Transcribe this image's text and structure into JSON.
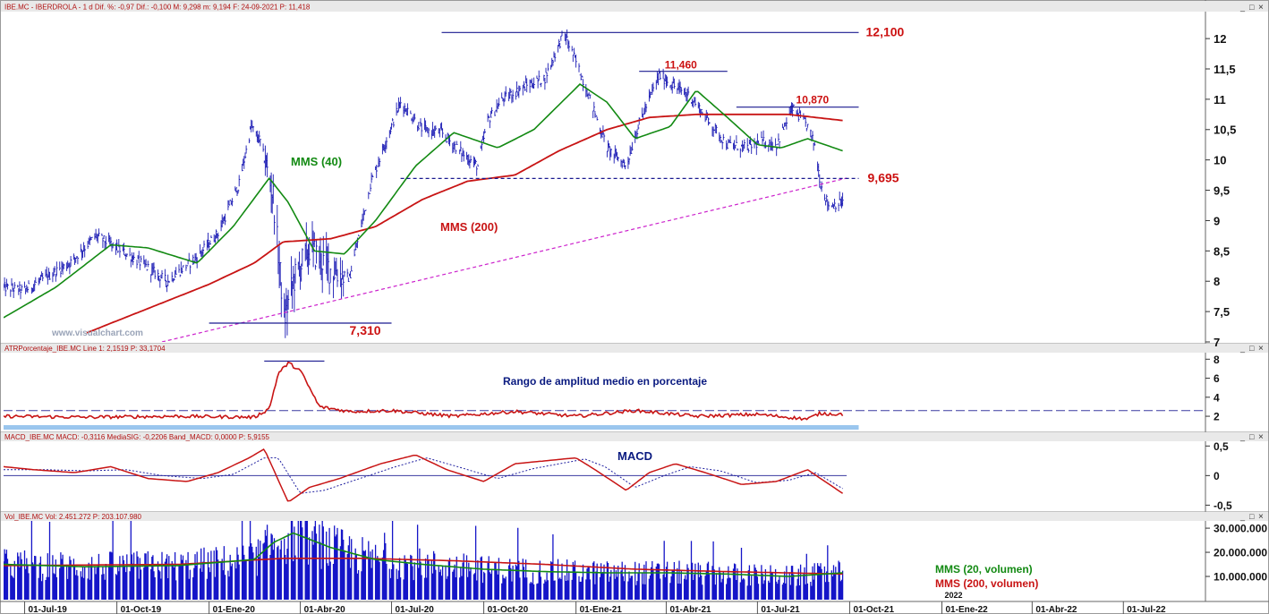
{
  "colors": {
    "price": "#1a1ab4",
    "mma40": "#138a13",
    "mma200": "#c81414",
    "trend": "#cc22cc",
    "annot_red": "#cc1111",
    "annot_blue": "#0a1a80",
    "level_line": "#1a1a90",
    "volume": "#1515c8",
    "grid_bg": "#ffffff",
    "header_bg": "#e9e9e9",
    "watermark": "#9aa4b8",
    "atr_band": "#9ac6ee"
  },
  "chart_data": [
    {
      "type": "line",
      "panel": "price",
      "header": "IBE.MC - IBERDROLA - 1 d Dif. %: -0,97 Dif.: -0,100 M: 9,298 m: 9,194 F: 24-09-2021 P: 11,418",
      "yticks": [
        "12",
        "11,5",
        "11",
        "10,5",
        "10",
        "9,5",
        "9",
        "8,5",
        "8",
        "7,5",
        "7"
      ],
      "ylim": [
        7,
        12.4
      ],
      "x_date_range": [
        "2019-06-10",
        "2022-09-20"
      ],
      "watermark": "www.visualchart.com",
      "series": [
        {
          "name": "",
          "role": "price",
          "dates": [
            "2019-06-10",
            "2019-07-01",
            "2019-08-15",
            "2019-09-10",
            "2019-10-01",
            "2019-10-25",
            "2019-11-20",
            "2019-12-20",
            "2020-01-10",
            "2020-01-31",
            "2020-02-12",
            "2020-02-21",
            "2020-03-05",
            "2020-03-16",
            "2020-03-25",
            "2020-04-10",
            "2020-05-01",
            "2020-05-20",
            "2020-06-10",
            "2020-06-25",
            "2020-07-10",
            "2020-08-01",
            "2020-08-20",
            "2020-09-10",
            "2020-09-25",
            "2020-10-05",
            "2020-10-20",
            "2020-11-10",
            "2020-12-01",
            "2020-12-20",
            "2021-01-05",
            "2021-01-15",
            "2021-02-01",
            "2021-02-20",
            "2021-03-05",
            "2021-03-25",
            "2021-04-10",
            "2021-04-25",
            "2021-05-15",
            "2021-06-01",
            "2021-06-20",
            "2021-07-05",
            "2021-07-20",
            "2021-08-05",
            "2021-08-20",
            "2021-08-27",
            "2021-09-02",
            "2021-09-10",
            "2021-09-24"
          ],
          "values": [
            7.9,
            7.85,
            8.3,
            8.75,
            8.55,
            8.3,
            8.0,
            8.4,
            8.8,
            9.6,
            10.55,
            10.3,
            9.4,
            7.35,
            8.0,
            8.55,
            8.2,
            8.05,
            9.6,
            10.3,
            10.95,
            10.5,
            10.45,
            10.1,
            9.9,
            10.65,
            11.0,
            11.2,
            11.35,
            12.1,
            11.45,
            11.0,
            10.2,
            9.9,
            10.6,
            11.4,
            11.2,
            11.05,
            10.6,
            10.25,
            10.2,
            10.3,
            10.25,
            10.85,
            10.55,
            10.25,
            9.6,
            9.25,
            9.3
          ]
        },
        {
          "name": "MMS (40)",
          "role": "mma40",
          "dates": [
            "2019-06-10",
            "2019-08-01",
            "2019-09-25",
            "2019-11-01",
            "2019-12-20",
            "2020-01-25",
            "2020-03-01",
            "2020-03-20",
            "2020-04-15",
            "2020-05-15",
            "2020-06-15",
            "2020-07-25",
            "2020-09-01",
            "2020-10-15",
            "2020-11-20",
            "2021-01-05",
            "2021-02-01",
            "2021-03-01",
            "2021-04-05",
            "2021-05-01",
            "2021-06-01",
            "2021-07-01",
            "2021-07-25",
            "2021-08-20",
            "2021-09-24"
          ],
          "values": [
            7.4,
            7.9,
            8.6,
            8.55,
            8.3,
            8.9,
            9.7,
            9.3,
            8.5,
            8.45,
            9.0,
            9.9,
            10.45,
            10.2,
            10.5,
            11.25,
            10.95,
            10.35,
            10.55,
            11.15,
            10.7,
            10.25,
            10.2,
            10.35,
            10.15
          ]
        },
        {
          "name": "MMS (200)",
          "role": "mma200",
          "dates": [
            "2019-09-01",
            "2019-11-01",
            "2020-01-01",
            "2020-02-15",
            "2020-03-15",
            "2020-05-01",
            "2020-06-15",
            "2020-08-01",
            "2020-09-15",
            "2020-11-01",
            "2020-12-15",
            "2021-02-01",
            "2021-03-15",
            "2021-05-01",
            "2021-06-15",
            "2021-08-01",
            "2021-09-24"
          ],
          "values": [
            7.15,
            7.55,
            7.95,
            8.3,
            8.65,
            8.7,
            8.9,
            9.35,
            9.65,
            9.75,
            10.15,
            10.5,
            10.7,
            10.75,
            10.75,
            10.75,
            10.65
          ]
        }
      ],
      "trendline": {
        "dates": [
          "2019-11-15",
          "2021-09-28"
        ],
        "values": [
          7.0,
          9.7
        ]
      },
      "levels": [
        {
          "label": "12,100",
          "value": 12.1,
          "from": "2020-08-20",
          "to": "2021-10-10",
          "style": "solid"
        },
        {
          "label": "11,460",
          "value": 11.46,
          "from": "2021-03-05",
          "to": "2021-06-01",
          "style": "solid"
        },
        {
          "label": "10,870",
          "value": 10.87,
          "from": "2021-06-10",
          "to": "2021-10-10",
          "style": "solid"
        },
        {
          "label": "9,695",
          "value": 9.695,
          "from": "2020-07-10",
          "to": "2021-10-10",
          "style": "dashed"
        },
        {
          "label": "7,310",
          "value": 7.31,
          "from": "2020-01-01",
          "to": "2020-07-01",
          "style": "solid"
        }
      ]
    },
    {
      "type": "line",
      "panel": "atr",
      "header": "ATRPorcentaje_IBE.MC Line 1: 2,1519 P: 33,1704",
      "title": "Rango de amplitud medio en porcentaje",
      "yticks": [
        "8",
        "6",
        "4",
        "2"
      ],
      "ylim": [
        0.5,
        8.5
      ],
      "dates": [
        "2019-06-10",
        "2019-09-01",
        "2019-12-01",
        "2020-02-15",
        "2020-03-01",
        "2020-03-10",
        "2020-03-20",
        "2020-04-01",
        "2020-04-20",
        "2020-05-20",
        "2020-07-01",
        "2020-09-01",
        "2020-11-01",
        "2021-01-01",
        "2021-03-01",
        "2021-05-01",
        "2021-07-01",
        "2021-08-20",
        "2021-09-01",
        "2021-09-24"
      ],
      "values": [
        2.0,
        1.9,
        2.0,
        1.9,
        2.8,
        6.5,
        7.6,
        6.8,
        3.0,
        2.5,
        2.6,
        2.0,
        2.5,
        2.0,
        2.6,
        2.0,
        2.2,
        1.7,
        2.3,
        2.2
      ],
      "reference_line": 2.6,
      "peak_line": {
        "value": 7.8,
        "from": "2020-02-25",
        "to": "2020-04-25"
      }
    },
    {
      "type": "line",
      "panel": "macd",
      "header": "MACD_IBE.MC MACD: -0,3116 MediaSIG: -0,2206 Band_MACD: 0,0000 P: 5,9155",
      "title": "MACD",
      "yticks": [
        "0,5",
        "0",
        "-0,5"
      ],
      "ylim": [
        -0.6,
        0.55
      ],
      "series": [
        {
          "name": "",
          "role": "macd",
          "dates": [
            "2019-06-10",
            "2019-07-10",
            "2019-08-20",
            "2019-09-25",
            "2019-11-01",
            "2019-12-10",
            "2020-01-10",
            "2020-02-10",
            "2020-02-25",
            "2020-03-20",
            "2020-04-10",
            "2020-05-10",
            "2020-06-20",
            "2020-07-25",
            "2020-08-25",
            "2020-10-01",
            "2020-11-01",
            "2021-01-01",
            "2021-01-20",
            "2021-02-20",
            "2021-03-15",
            "2021-04-10",
            "2021-05-10",
            "2021-06-15",
            "2021-07-20",
            "2021-08-20",
            "2021-09-02",
            "2021-09-24"
          ],
          "values": [
            0.15,
            0.1,
            0.05,
            0.15,
            -0.05,
            -0.1,
            0.05,
            0.3,
            0.45,
            -0.45,
            -0.2,
            -0.05,
            0.2,
            0.35,
            0.1,
            -0.1,
            0.2,
            0.3,
            0.1,
            -0.25,
            0.05,
            0.2,
            0.05,
            -0.15,
            -0.1,
            0.1,
            -0.05,
            -0.3
          ]
        },
        {
          "name": "",
          "role": "signal",
          "dates": [
            "2019-06-10",
            "2019-07-20",
            "2019-09-01",
            "2019-10-10",
            "2019-11-15",
            "2019-12-25",
            "2020-01-25",
            "2020-02-25",
            "2020-03-10",
            "2020-04-01",
            "2020-04-25",
            "2020-05-25",
            "2020-07-05",
            "2020-08-05",
            "2020-09-05",
            "2020-10-15",
            "2020-11-20",
            "2021-01-10",
            "2021-01-30",
            "2021-03-01",
            "2021-03-30",
            "2021-04-25",
            "2021-05-25",
            "2021-06-30",
            "2021-08-01",
            "2021-08-28",
            "2021-09-24"
          ],
          "values": [
            0.1,
            0.1,
            0.08,
            0.1,
            0.0,
            -0.05,
            0.02,
            0.3,
            0.3,
            -0.3,
            -0.25,
            -0.08,
            0.15,
            0.3,
            0.15,
            -0.05,
            0.12,
            0.28,
            0.15,
            -0.2,
            0.0,
            0.15,
            0.08,
            -0.12,
            -0.08,
            0.05,
            -0.22
          ]
        }
      ],
      "zero_line": 0
    },
    {
      "type": "bar",
      "panel": "volume",
      "header": "Vol_IBE.MC Vol: 2.451.272 P: 203.107.980",
      "yticks": [
        "30.000.000",
        "20.000.000",
        "10.000.000"
      ],
      "ylim": [
        0,
        33000000
      ],
      "ma_series": [
        {
          "name": "MMS (20, volumen)",
          "role": "vol_ma20",
          "dates": [
            "2019-06-10",
            "2019-09-01",
            "2019-12-01",
            "2020-02-15",
            "2020-03-05",
            "2020-03-25",
            "2020-05-01",
            "2020-06-15",
            "2020-08-01",
            "2020-10-01",
            "2020-12-01",
            "2021-02-01",
            "2021-04-01",
            "2021-06-01",
            "2021-08-01",
            "2021-09-24"
          ],
          "values": [
            15000000,
            14000000,
            14500000,
            17000000,
            24000000,
            28000000,
            22000000,
            17000000,
            15000000,
            13000000,
            12000000,
            11500000,
            11500000,
            11000000,
            10000000,
            11500000
          ]
        },
        {
          "name": "MMS (200, volumen)",
          "role": "vol_ma200",
          "dates": [
            "2019-06-10",
            "2019-12-01",
            "2020-03-15",
            "2020-06-01",
            "2020-09-01",
            "2020-12-01",
            "2021-03-01",
            "2021-06-01",
            "2021-09-24"
          ],
          "values": [
            14500000,
            15000000,
            17500000,
            17500000,
            16500000,
            15000000,
            13000000,
            12000000,
            11000000
          ]
        }
      ]
    }
  ],
  "x_axis": {
    "ticks": [
      {
        "label": "01-Jul-19",
        "date": "2019-07-01"
      },
      {
        "label": "01-Oct-19",
        "date": "2019-10-01"
      },
      {
        "label": "01-Ene-20",
        "date": "2020-01-01"
      },
      {
        "label": "01-Abr-20",
        "date": "2020-04-01"
      },
      {
        "label": "01-Jul-20",
        "date": "2020-07-01"
      },
      {
        "label": "01-Oct-20",
        "date": "2020-10-01"
      },
      {
        "label": "01-Ene-21",
        "date": "2021-01-01"
      },
      {
        "label": "01-Abr-21",
        "date": "2021-04-01"
      },
      {
        "label": "01-Jul-21",
        "date": "2021-07-01"
      },
      {
        "label": "01-Oct-21",
        "date": "2021-10-01"
      },
      {
        "label": "01-Ene-22",
        "date": "2022-01-01"
      },
      {
        "label": "01-Abr-22",
        "date": "2022-04-01"
      },
      {
        "label": "01-Jul-22",
        "date": "2022-07-01"
      }
    ],
    "year_marker": {
      "label": "2022",
      "date": "2022-01-01"
    }
  },
  "window_controls": [
    "_",
    "□",
    "×"
  ]
}
